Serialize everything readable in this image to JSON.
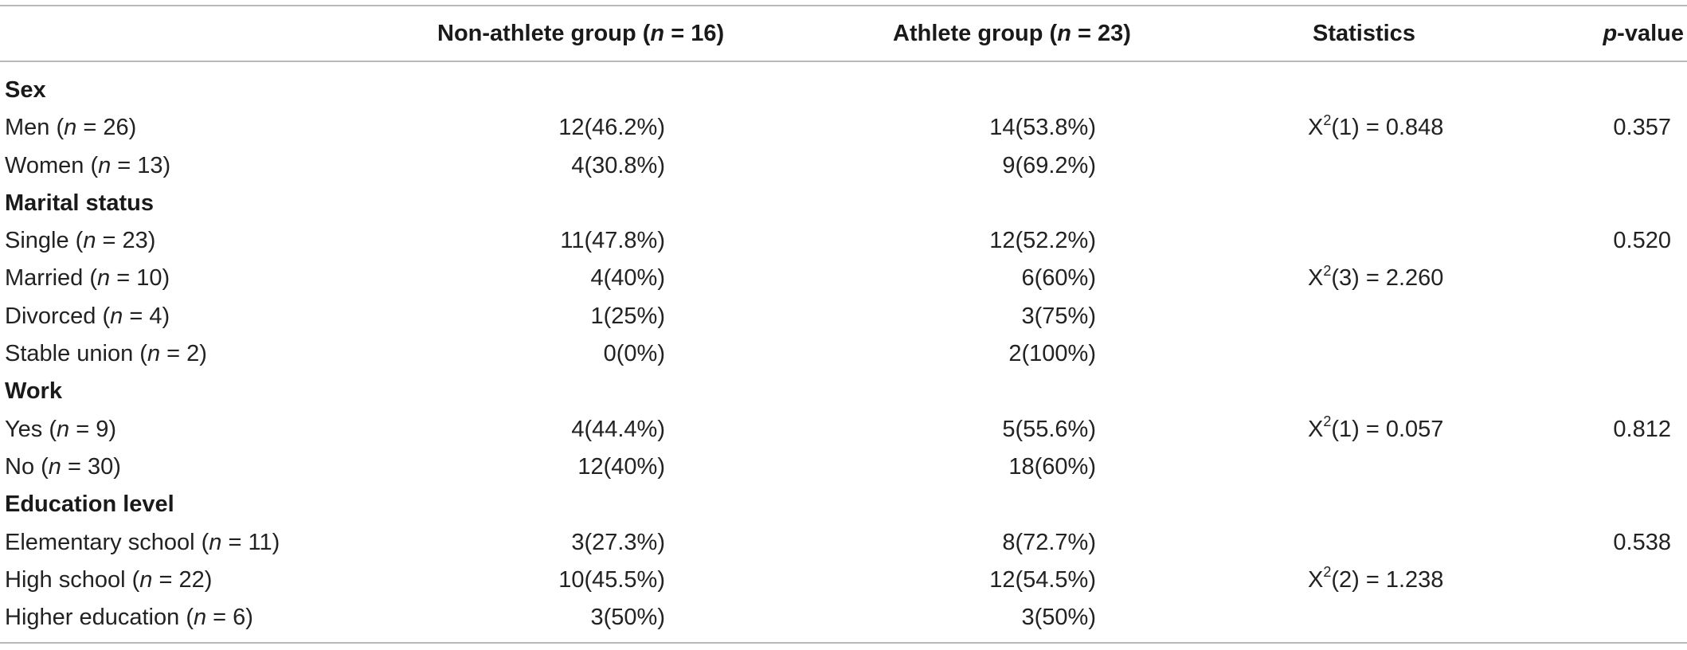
{
  "header": {
    "col_variable": "",
    "col_nonathlete_pre": "Non-athlete group (",
    "col_nonathlete_n": "n",
    "col_nonathlete_post": " = 16)",
    "col_athlete_pre": "Athlete group (",
    "col_athlete_n": "n",
    "col_athlete_post": " = 23)",
    "col_statistics": "Statistics",
    "col_pvalue_p": "p",
    "col_pvalue_rest": "-value"
  },
  "rows": [
    {
      "type": "section",
      "label": "Sex"
    },
    {
      "type": "data",
      "label_pre": "Men (",
      "label_n": "n",
      "label_post": " = 26)",
      "nonathlete": "12(46.2%)",
      "athlete": "14(53.8%)",
      "stat_pre": "X",
      "stat_sup": "2",
      "stat_post": "(1) = 0.848",
      "pvalue": "0.357"
    },
    {
      "type": "data",
      "label_pre": "Women (",
      "label_n": "n",
      "label_post": " = 13)",
      "nonathlete": "4(30.8%)",
      "athlete": "9(69.2%)",
      "stat_pre": "",
      "stat_sup": "",
      "stat_post": "",
      "pvalue": ""
    },
    {
      "type": "section",
      "label": "Marital status"
    },
    {
      "type": "data",
      "label_pre": "Single (",
      "label_n": "n",
      "label_post": " = 23)",
      "nonathlete": "11(47.8%)",
      "athlete": "12(52.2%)",
      "stat_pre": "",
      "stat_sup": "",
      "stat_post": "",
      "pvalue": "0.520"
    },
    {
      "type": "data",
      "label_pre": "Married (",
      "label_n": "n",
      "label_post": " = 10)",
      "nonathlete": "4(40%)",
      "athlete": "6(60%)",
      "stat_pre": "X",
      "stat_sup": "2",
      "stat_post": "(3) = 2.260",
      "pvalue": ""
    },
    {
      "type": "data",
      "label_pre": "Divorced (",
      "label_n": "n",
      "label_post": " = 4)",
      "nonathlete": "1(25%)",
      "athlete": "3(75%)",
      "stat_pre": "",
      "stat_sup": "",
      "stat_post": "",
      "pvalue": ""
    },
    {
      "type": "data",
      "label_pre": "Stable union (",
      "label_n": "n",
      "label_post": " = 2)",
      "nonathlete": "0(0%)",
      "athlete": "2(100%)",
      "stat_pre": "",
      "stat_sup": "",
      "stat_post": "",
      "pvalue": ""
    },
    {
      "type": "section",
      "label": "Work"
    },
    {
      "type": "data",
      "label_pre": "Yes (",
      "label_n": "n",
      "label_post": " = 9)",
      "nonathlete": "4(44.4%)",
      "athlete": "5(55.6%)",
      "stat_pre": "X",
      "stat_sup": "2",
      "stat_post": "(1) = 0.057",
      "pvalue": "0.812"
    },
    {
      "type": "data",
      "label_pre": "No (",
      "label_n": "n",
      "label_post": " = 30)",
      "nonathlete": "12(40%)",
      "athlete": "18(60%)",
      "stat_pre": "",
      "stat_sup": "",
      "stat_post": "",
      "pvalue": ""
    },
    {
      "type": "section",
      "label": "Education level"
    },
    {
      "type": "data",
      "label_pre": "Elementary school (",
      "label_n": "n",
      "label_post": " = 11)",
      "nonathlete": "3(27.3%)",
      "athlete": "8(72.7%)",
      "stat_pre": "",
      "stat_sup": "",
      "stat_post": "",
      "pvalue": "0.538"
    },
    {
      "type": "data",
      "label_pre": "High school (",
      "label_n": "n",
      "label_post": " = 22)",
      "nonathlete": "10(45.5%)",
      "athlete": "12(54.5%)",
      "stat_pre": "X",
      "stat_sup": "2",
      "stat_post": "(2) = 1.238",
      "pvalue": ""
    },
    {
      "type": "data",
      "label_pre": "Higher education (",
      "label_n": "n",
      "label_post": " = 6)",
      "nonathlete": "3(50%)",
      "athlete": "3(50%)",
      "stat_pre": "",
      "stat_sup": "",
      "stat_post": "",
      "pvalue": ""
    }
  ]
}
